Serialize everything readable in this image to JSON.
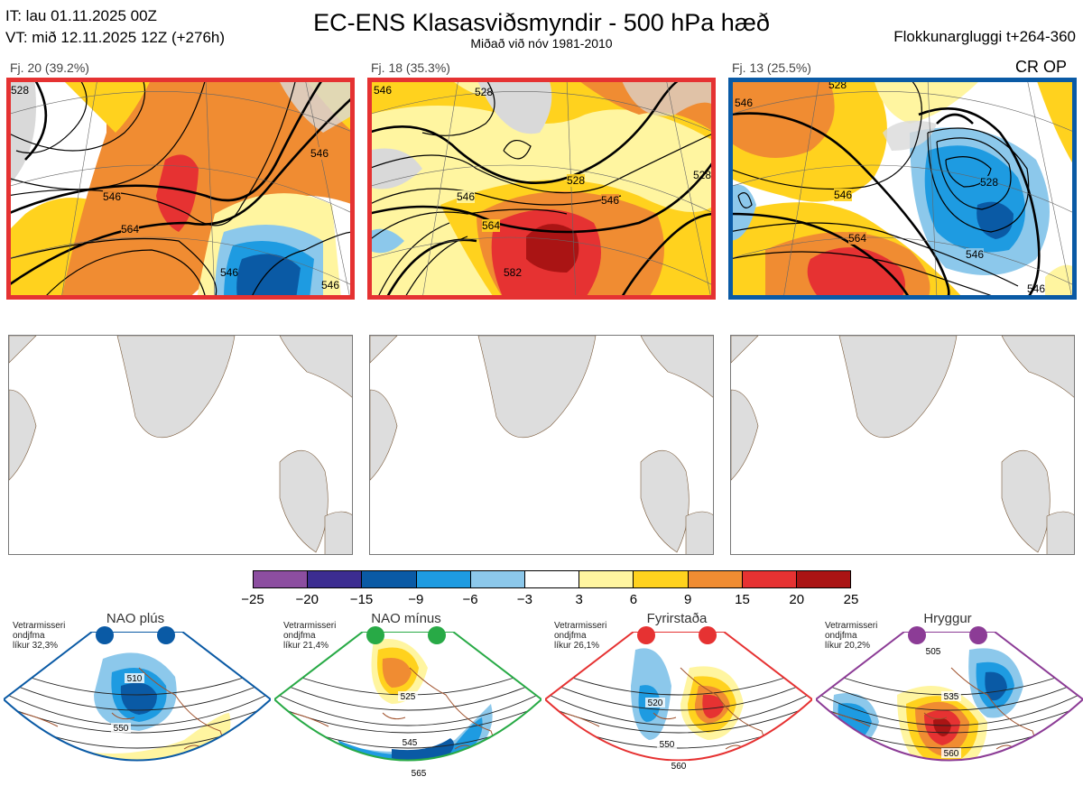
{
  "header": {
    "it": "IT: lau 01.11.2025 00Z",
    "vt": "VT: mið 12.11.2025 12Z  (+276h)",
    "title": "EC-ENS Klasasviðsmyndir - 500 hPa hæð",
    "subtitle": "Miðað við nóv 1981-2010",
    "window": "Flokkunargluggi t+264-360"
  },
  "panels": [
    {
      "label": "Fj. 20 (39.2%)",
      "border": "#e53232"
    },
    {
      "label": "Fj. 18 (35.3%)",
      "border": "#e53232"
    },
    {
      "label": "Fj. 13 (25.5%)",
      "border": "#0a5aa5"
    }
  ],
  "corner_label": "CR OP",
  "contour_labels": [
    [
      "528",
      "546",
      "564",
      "546",
      "546",
      "546"
    ],
    [
      "546",
      "528",
      "546",
      "528",
      "564",
      "582",
      "546",
      "528"
    ],
    [
      "546",
      "528",
      "546",
      "564",
      "528",
      "546",
      "546"
    ]
  ],
  "chart_data": {
    "type": "heatmap",
    "title": "EC-ENS Klasasviðsmyndir - 500 hPa hæð",
    "colorbar": {
      "ticks": [
        "−25",
        "−20",
        "−15",
        "−9",
        "−6",
        "−3",
        "3",
        "6",
        "9",
        "15",
        "20",
        "25"
      ],
      "colors": [
        "#8c4ea0",
        "#3c2d91",
        "#0a5aa5",
        "#1e9be1",
        "#8cc8eb",
        "#ffffff",
        "#fff5a0",
        "#ffd21e",
        "#f08c32",
        "#e63232",
        "#aa1414"
      ]
    },
    "clusters": [
      {
        "cluster": 20,
        "percent": 39.2
      },
      {
        "cluster": 18,
        "percent": 35.3
      },
      {
        "cluster": 13,
        "percent": 25.5
      }
    ],
    "regimes": [
      {
        "name": "NAO plús",
        "info": [
          "Vetrarmisseri",
          "ondjfma",
          "líkur 32,3%"
        ],
        "probability": 32.3,
        "color": "#0a5aa5",
        "contours": [
          "510",
          "550"
        ]
      },
      {
        "name": "NAO mínus",
        "info": [
          "Vetrarmisseri",
          "ondjfma",
          "líkur 21,4%"
        ],
        "probability": 21.4,
        "color": "#28aa46",
        "contours": [
          "525",
          "545",
          "565"
        ]
      },
      {
        "name": "Fyrirstaða",
        "info": [
          "Vetrarmisseri",
          "ondjfma",
          "líkur 26,1%"
        ],
        "probability": 26.1,
        "color": "#e63232",
        "contours": [
          "520",
          "550",
          "560"
        ]
      },
      {
        "name": "Hryggur",
        "info": [
          "Vetrarmisseri",
          "ondjfma",
          "líkur 20,2%"
        ],
        "probability": 20.2,
        "color": "#8c3c96",
        "contours": [
          "505",
          "535",
          "560"
        ]
      }
    ]
  }
}
